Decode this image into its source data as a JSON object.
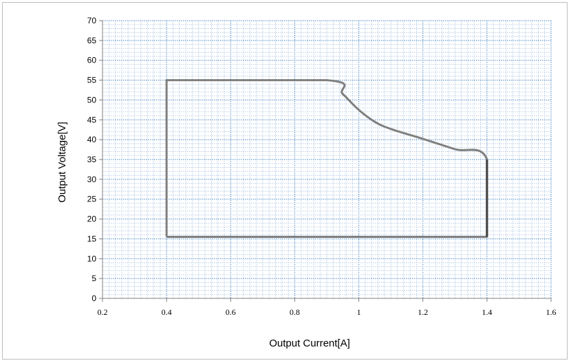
{
  "chart_data": {
    "type": "line",
    "title": "",
    "xlabel": "Output Current[A]",
    "ylabel": "Output Voltage[V]",
    "xlim": [
      0.2,
      1.6
    ],
    "ylim": [
      0,
      70
    ],
    "x_ticks": [
      "0.2",
      "0.4",
      "0.6",
      "0.8",
      "1",
      "1.2",
      "1.4",
      "1.6"
    ],
    "y_ticks": [
      "0",
      "5",
      "10",
      "15",
      "20",
      "25",
      "30",
      "35",
      "40",
      "45",
      "50",
      "55",
      "60",
      "65",
      "70"
    ],
    "grid": true,
    "series": [
      {
        "color": "#7f7f7f",
        "x": [
          0.4,
          0.4,
          0.9,
          0.95,
          1.0,
          1.05,
          1.1,
          1.2,
          1.3,
          1.4,
          1.4,
          0.4
        ],
        "y": [
          15.5,
          55,
          55,
          51.5,
          47.5,
          44.5,
          42.7,
          40.2,
          37.6,
          35,
          15.5,
          15.5
        ]
      },
      {
        "color": "#404040",
        "x": [
          1.4,
          1.4
        ],
        "y": [
          35,
          15.5
        ]
      }
    ]
  },
  "colors": {
    "grid_major": "#4a86c6",
    "grid_minor": "#a9c4e4",
    "axis": "#808080"
  }
}
